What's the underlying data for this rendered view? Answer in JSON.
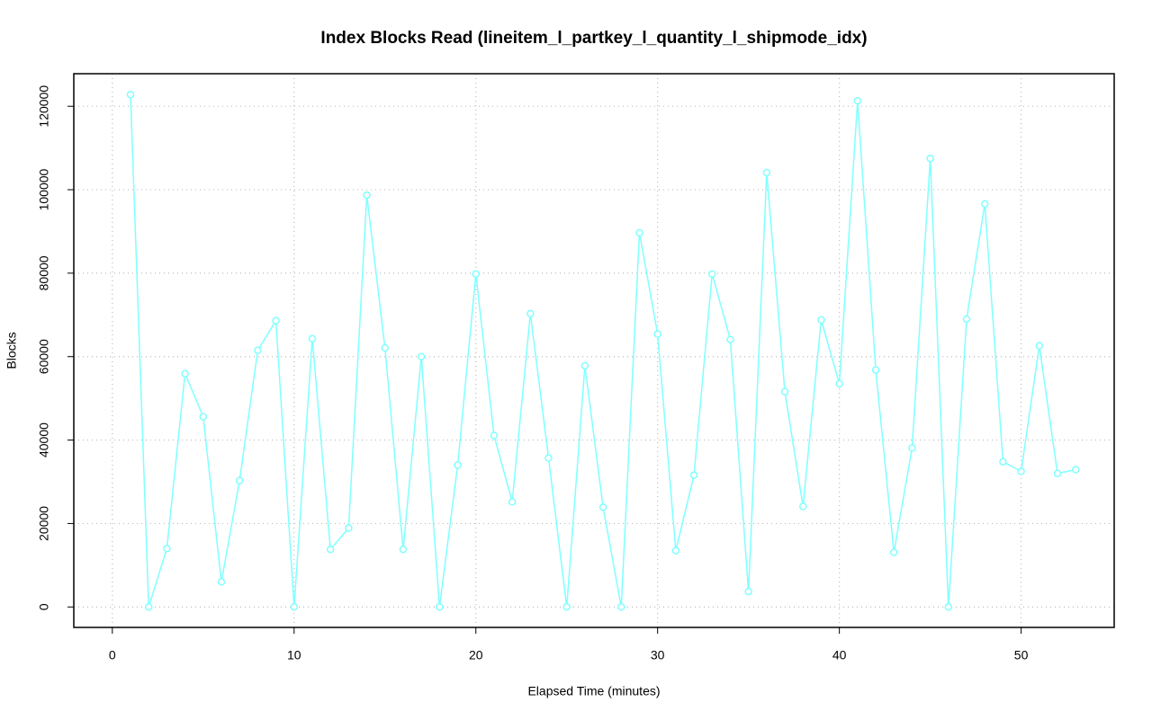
{
  "chart_data": {
    "type": "line",
    "title": "Index Blocks Read (lineitem_l_partkey_l_quantity_l_shipmode_idx)",
    "x_label": "Elapsed Time (minutes)",
    "y_label": "Blocks",
    "x": [
      1,
      2,
      3,
      4,
      5,
      6,
      7,
      8,
      9,
      10,
      11,
      12,
      13,
      14,
      15,
      16,
      17,
      18,
      19,
      20,
      21,
      22,
      23,
      24,
      25,
      26,
      27,
      28,
      29,
      30,
      31,
      32,
      33,
      34,
      35,
      36,
      37,
      38,
      39,
      40,
      41,
      42,
      43,
      44,
      45,
      46,
      47,
      48,
      49,
      50,
      51,
      52,
      53
    ],
    "series": [
      {
        "name": "Blocks",
        "color": "#80ffff",
        "values": [
          122800,
          0,
          14000,
          55900,
          45600,
          6000,
          30300,
          61500,
          68600,
          0,
          64300,
          13800,
          18900,
          98700,
          62100,
          13800,
          60000,
          0,
          34000,
          79800,
          41100,
          25200,
          70300,
          35700,
          0,
          57800,
          23900,
          0,
          89700,
          65400,
          13500,
          31600,
          79800,
          64100,
          3700,
          104100,
          51600,
          24100,
          68800,
          53500,
          121300,
          56800,
          13100,
          38100,
          107500,
          0,
          69000,
          96600,
          34800,
          32500,
          62600,
          32000,
          32900
        ]
      }
    ],
    "xlim": [
      -2.12,
      55.12
    ],
    "xticks": [
      0,
      10,
      20,
      30,
      40,
      50
    ],
    "ylim": [
      -4900,
      127800
    ],
    "yticks": [
      0,
      20000,
      40000,
      60000,
      80000,
      100000,
      120000
    ],
    "grid": true
  }
}
